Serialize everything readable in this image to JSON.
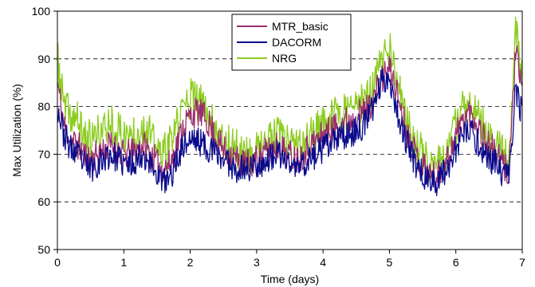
{
  "chart_data": {
    "type": "line",
    "xlabel": "Time (days)",
    "ylabel": "Max Utilization (%)",
    "xlim": [
      0,
      7
    ],
    "ylim": [
      50,
      100
    ],
    "x_ticks": [
      0,
      1,
      2,
      3,
      4,
      5,
      6,
      7
    ],
    "y_ticks": [
      50,
      60,
      70,
      80,
      90,
      100
    ],
    "grid": "horizontal dashed at 60, 70, 80, 90",
    "legend_position": "top-center",
    "series": [
      {
        "name": "MTR_basic",
        "color": "#9b2d6e",
        "x": [
          0.0,
          0.1,
          0.2,
          0.3,
          0.4,
          0.5,
          0.6,
          0.7,
          0.8,
          0.9,
          1.0,
          1.1,
          1.2,
          1.3,
          1.4,
          1.5,
          1.6,
          1.7,
          1.8,
          1.9,
          2.0,
          2.1,
          2.2,
          2.3,
          2.4,
          2.5,
          2.6,
          2.7,
          2.8,
          2.9,
          3.0,
          3.1,
          3.2,
          3.3,
          3.4,
          3.5,
          3.6,
          3.7,
          3.8,
          3.9,
          4.0,
          4.1,
          4.2,
          4.3,
          4.4,
          4.5,
          4.6,
          4.7,
          4.8,
          4.9,
          5.0,
          5.1,
          5.2,
          5.3,
          5.4,
          5.5,
          5.6,
          5.7,
          5.8,
          5.9,
          6.0,
          6.1,
          6.2,
          6.3,
          6.4,
          6.5,
          6.6,
          6.7,
          6.8,
          6.9,
          7.0
        ],
        "values": [
          85,
          76,
          73,
          72,
          70,
          69,
          70,
          71,
          72,
          71,
          70,
          70,
          71,
          72,
          70,
          68,
          67,
          68,
          72,
          76,
          78,
          79,
          78,
          76,
          73,
          71,
          70,
          69,
          68,
          68,
          69,
          70,
          71,
          72,
          71,
          70,
          69,
          70,
          72,
          73,
          74,
          75,
          76,
          77,
          77,
          78,
          79,
          80,
          83,
          86,
          88,
          84,
          78,
          73,
          70,
          68,
          66,
          65,
          67,
          70,
          74,
          77,
          79,
          77,
          74,
          72,
          70,
          68,
          66,
          92,
          82
        ]
      },
      {
        "name": "DACORM",
        "color": "#0a0a8c",
        "x": [
          0.0,
          0.1,
          0.2,
          0.3,
          0.4,
          0.5,
          0.6,
          0.7,
          0.8,
          0.9,
          1.0,
          1.1,
          1.2,
          1.3,
          1.4,
          1.5,
          1.6,
          1.7,
          1.8,
          1.9,
          2.0,
          2.1,
          2.2,
          2.3,
          2.4,
          2.5,
          2.6,
          2.7,
          2.8,
          2.9,
          3.0,
          3.1,
          3.2,
          3.3,
          3.4,
          3.5,
          3.6,
          3.7,
          3.8,
          3.9,
          4.0,
          4.1,
          4.2,
          4.3,
          4.4,
          4.5,
          4.6,
          4.7,
          4.8,
          4.9,
          5.0,
          5.1,
          5.2,
          5.3,
          5.4,
          5.5,
          5.6,
          5.7,
          5.8,
          5.9,
          6.0,
          6.1,
          6.2,
          6.3,
          6.4,
          6.5,
          6.6,
          6.7,
          6.8,
          6.9,
          7.0
        ],
        "values": [
          80,
          74,
          71,
          70,
          68,
          67,
          68,
          69,
          70,
          69,
          68,
          68,
          69,
          70,
          68,
          66,
          64,
          65,
          69,
          72,
          73,
          73,
          72,
          71,
          70,
          69,
          68,
          67,
          67,
          67,
          68,
          68,
          69,
          70,
          69,
          68,
          67,
          68,
          69,
          70,
          71,
          72,
          73,
          74,
          74,
          75,
          76,
          78,
          82,
          86,
          86,
          80,
          75,
          71,
          68,
          66,
          64,
          64,
          66,
          68,
          71,
          74,
          75,
          73,
          71,
          69,
          68,
          66,
          65,
          84,
          78
        ]
      },
      {
        "name": "NRG",
        "color": "#8ccc1e",
        "x": [
          0.0,
          0.1,
          0.2,
          0.3,
          0.4,
          0.5,
          0.6,
          0.7,
          0.8,
          0.9,
          1.0,
          1.1,
          1.2,
          1.3,
          1.4,
          1.5,
          1.6,
          1.7,
          1.8,
          1.9,
          2.0,
          2.1,
          2.2,
          2.3,
          2.4,
          2.5,
          2.6,
          2.7,
          2.8,
          2.9,
          3.0,
          3.1,
          3.2,
          3.3,
          3.4,
          3.5,
          3.6,
          3.7,
          3.8,
          3.9,
          4.0,
          4.1,
          4.2,
          4.3,
          4.4,
          4.5,
          4.6,
          4.7,
          4.8,
          4.9,
          5.0,
          5.1,
          5.2,
          5.3,
          5.4,
          5.5,
          5.6,
          5.7,
          5.8,
          5.9,
          6.0,
          6.1,
          6.2,
          6.3,
          6.4,
          6.5,
          6.6,
          6.7,
          6.8,
          6.9,
          7.0
        ],
        "values": [
          90,
          80,
          78,
          77,
          74,
          73,
          74,
          75,
          77,
          75,
          74,
          74,
          75,
          76,
          74,
          71,
          70,
          72,
          76,
          80,
          82,
          81,
          80,
          78,
          75,
          73,
          72,
          71,
          70,
          70,
          71,
          72,
          73,
          74,
          73,
          72,
          71,
          72,
          74,
          75,
          76,
          77,
          78,
          79,
          79,
          80,
          81,
          82,
          86,
          90,
          92,
          86,
          80,
          75,
          72,
          70,
          68,
          67,
          69,
          72,
          76,
          79,
          82,
          79,
          76,
          74,
          72,
          70,
          68,
          97,
          86
        ]
      }
    ]
  }
}
